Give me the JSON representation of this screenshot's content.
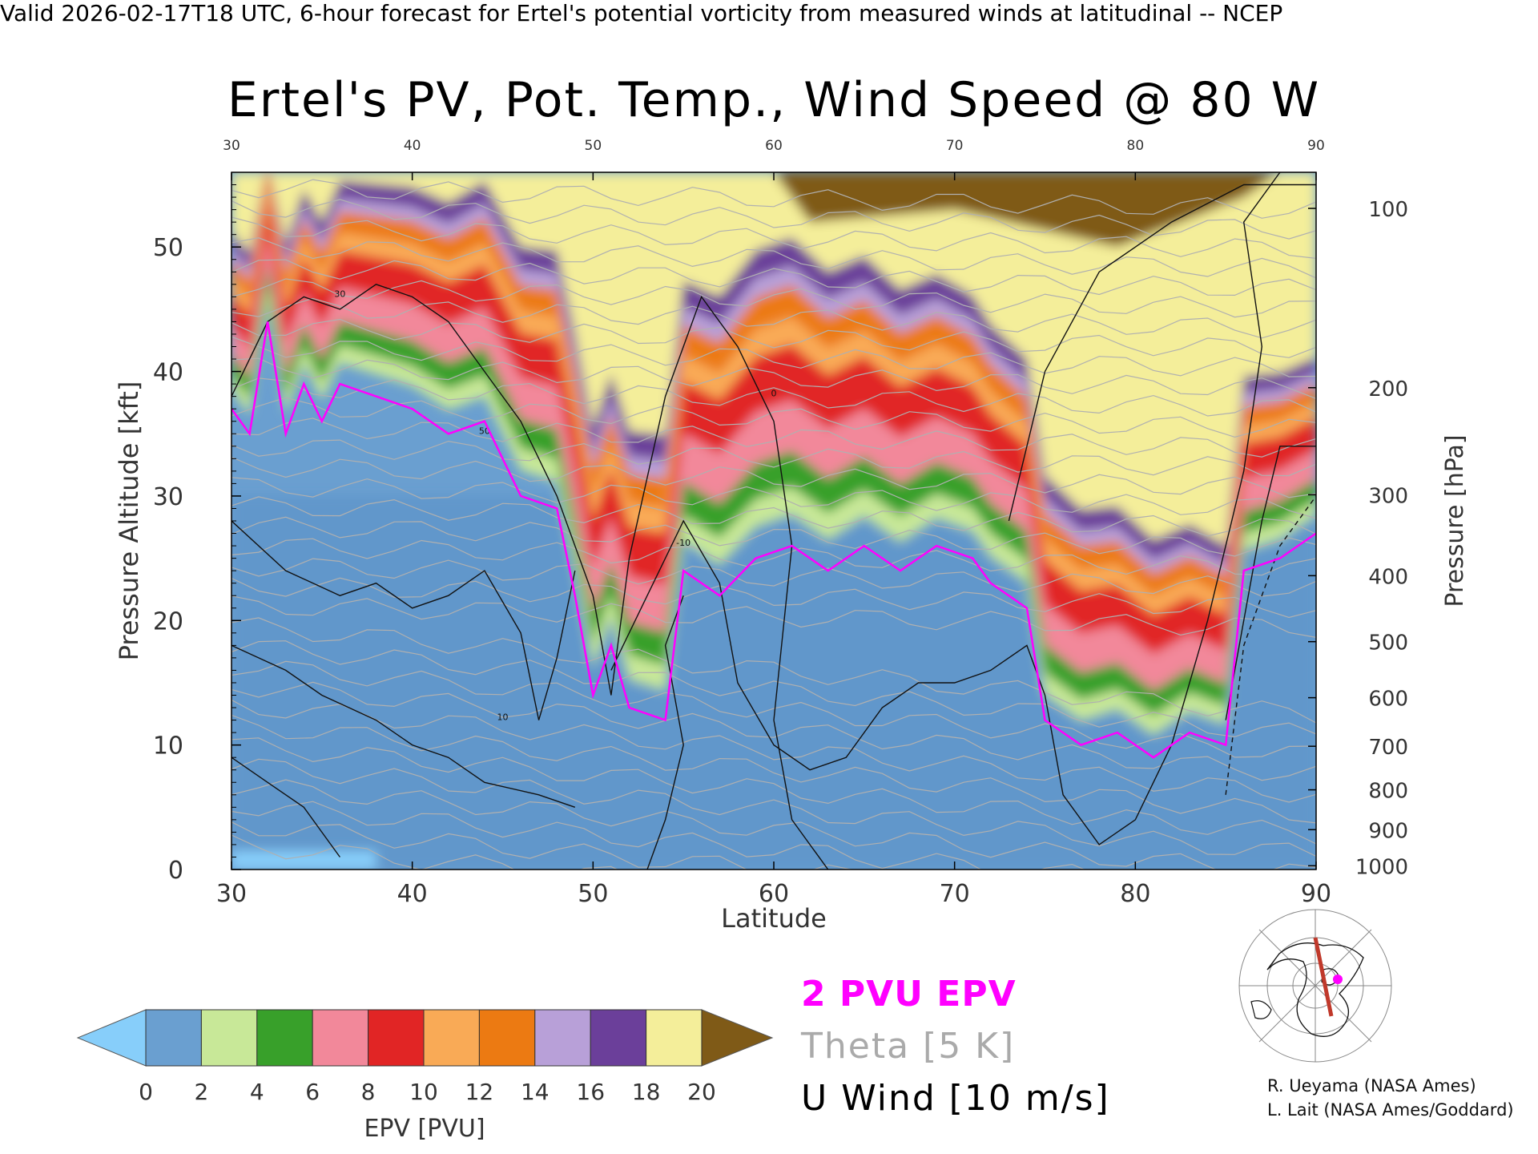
{
  "header": "Valid 2026-02-17T18 UTC, 6-hour forecast for Ertel's potential vorticity from measured winds at latitudinal -- NCEP",
  "chart_data": {
    "type": "heatmap",
    "title": "Ertel's PV, Pot. Temp., Wind Speed @ 80 W",
    "xlabel": "Latitude",
    "ylabel": "Pressure Altitude [kft]",
    "ylabel_right": "Pressure [hPa]",
    "xlim": [
      30,
      90
    ],
    "ylim": [
      0,
      56
    ],
    "xticks": [
      "30",
      "40",
      "50",
      "60",
      "70",
      "80",
      "90"
    ],
    "yticks": [
      "0",
      "10",
      "20",
      "30",
      "40",
      "50"
    ],
    "pressure_ticks": [
      {
        "label": "100",
        "kft": 53.1
      },
      {
        "label": "200",
        "kft": 38.7
      },
      {
        "label": "300",
        "kft": 30.1
      },
      {
        "label": "400",
        "kft": 23.6
      },
      {
        "label": "500",
        "kft": 18.3
      },
      {
        "label": "600",
        "kft": 13.8
      },
      {
        "label": "700",
        "kft": 9.9
      },
      {
        "label": "800",
        "kft": 6.4
      },
      {
        "label": "900",
        "kft": 3.2
      },
      {
        "label": "1000",
        "kft": 0.3
      }
    ],
    "colorbar": {
      "label": "EPV [PVU]",
      "ticks": [
        "0",
        "2",
        "4",
        "6",
        "8",
        "10",
        "12",
        "14",
        "16",
        "18",
        "20"
      ],
      "colors": [
        "#6a9fd0",
        "#c8e898",
        "#38a02a",
        "#f2889a",
        "#e12525",
        "#f9aa56",
        "#ec7a12",
        "#b8a0d8",
        "#6b3f9a",
        "#f4ee9a"
      ],
      "under_color": "#87cefa",
      "over_color": "#7f5a17"
    },
    "contour_2pvu_kft": [
      {
        "lat": 30,
        "kft": 37
      },
      {
        "lat": 31,
        "kft": 35
      },
      {
        "lat": 32,
        "kft": 44
      },
      {
        "lat": 33,
        "kft": 35
      },
      {
        "lat": 34,
        "kft": 39
      },
      {
        "lat": 35,
        "kft": 36
      },
      {
        "lat": 36,
        "kft": 39
      },
      {
        "lat": 38,
        "kft": 38
      },
      {
        "lat": 40,
        "kft": 37
      },
      {
        "lat": 42,
        "kft": 35
      },
      {
        "lat": 44,
        "kft": 36
      },
      {
        "lat": 46,
        "kft": 30
      },
      {
        "lat": 48,
        "kft": 29
      },
      {
        "lat": 49,
        "kft": 22
      },
      {
        "lat": 50,
        "kft": 14
      },
      {
        "lat": 51,
        "kft": 18
      },
      {
        "lat": 52,
        "kft": 13
      },
      {
        "lat": 54,
        "kft": 12
      },
      {
        "lat": 55,
        "kft": 24
      },
      {
        "lat": 57,
        "kft": 22
      },
      {
        "lat": 59,
        "kft": 25
      },
      {
        "lat": 61,
        "kft": 26
      },
      {
        "lat": 63,
        "kft": 24
      },
      {
        "lat": 65,
        "kft": 26
      },
      {
        "lat": 67,
        "kft": 24
      },
      {
        "lat": 69,
        "kft": 26
      },
      {
        "lat": 71,
        "kft": 25
      },
      {
        "lat": 72,
        "kft": 23
      },
      {
        "lat": 74,
        "kft": 21
      },
      {
        "lat": 75,
        "kft": 12
      },
      {
        "lat": 77,
        "kft": 10
      },
      {
        "lat": 79,
        "kft": 11
      },
      {
        "lat": 81,
        "kft": 9
      },
      {
        "lat": 83,
        "kft": 11
      },
      {
        "lat": 85,
        "kft": 10
      },
      {
        "lat": 86,
        "kft": 24
      },
      {
        "lat": 88,
        "kft": 25
      },
      {
        "lat": 90,
        "kft": 27
      }
    ],
    "wind_contour_labels": [
      "30",
      "50",
      "10",
      "0",
      "-10"
    ]
  },
  "legend": {
    "epv_label": "2 PVU EPV",
    "theta_label": "Theta [5 K]",
    "u_label": "U Wind [10 m/s]"
  },
  "credits": [
    "R. Ueyama (NASA Ames)",
    "L. Lait (NASA Ames/Goddard)"
  ],
  "inset_map": {
    "marker_color": "#ff00ff",
    "track_color": "#c0392b"
  }
}
